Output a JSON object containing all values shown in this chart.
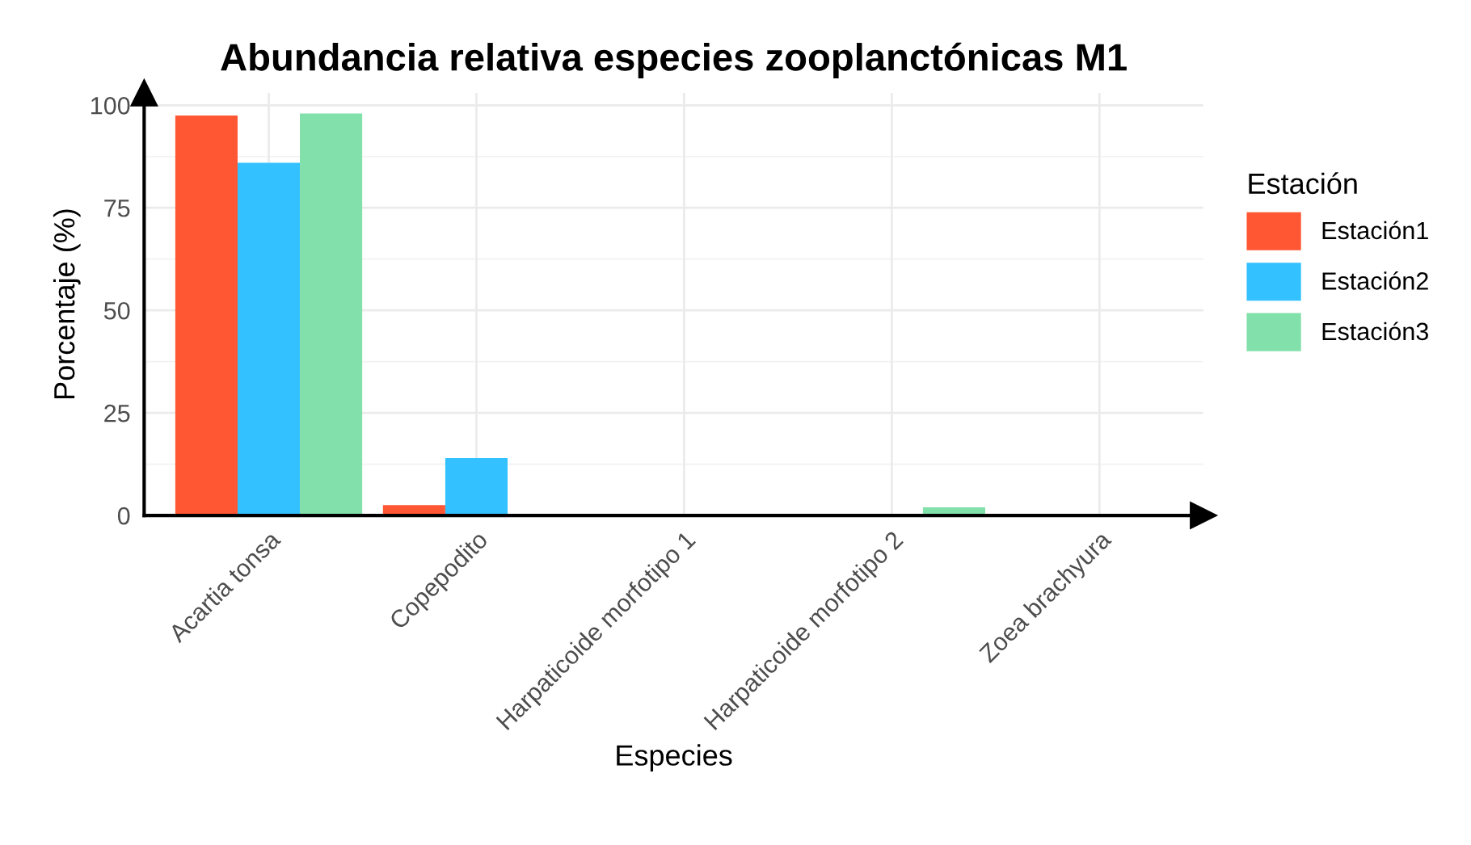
{
  "chart_data": {
    "type": "bar",
    "title": "Abundancia relativa especies zooplanctónicas M1",
    "xlabel": "Especies",
    "ylabel": "Porcentaje (%)",
    "legend_title": "Estación",
    "categories": [
      "Acartia tonsa",
      "Copepodito",
      "Harpaticoide morfotipo 1",
      "Harpaticoide morfotipo 2",
      "Zoea brachyura"
    ],
    "series": [
      {
        "name": "Estación1",
        "color": "#ff5733",
        "values": [
          97.5,
          2.5,
          0,
          0,
          0
        ]
      },
      {
        "name": "Estación2",
        "color": "#33c1ff",
        "values": [
          86,
          14,
          0,
          0,
          0
        ]
      },
      {
        "name": "Estación3",
        "color": "#82e0aa",
        "values": [
          98,
          0,
          0,
          2,
          0
        ]
      }
    ],
    "ylim": [
      0,
      103
    ],
    "yticks": [
      0,
      25,
      50,
      75,
      100
    ],
    "grid": true,
    "legend": "right"
  }
}
